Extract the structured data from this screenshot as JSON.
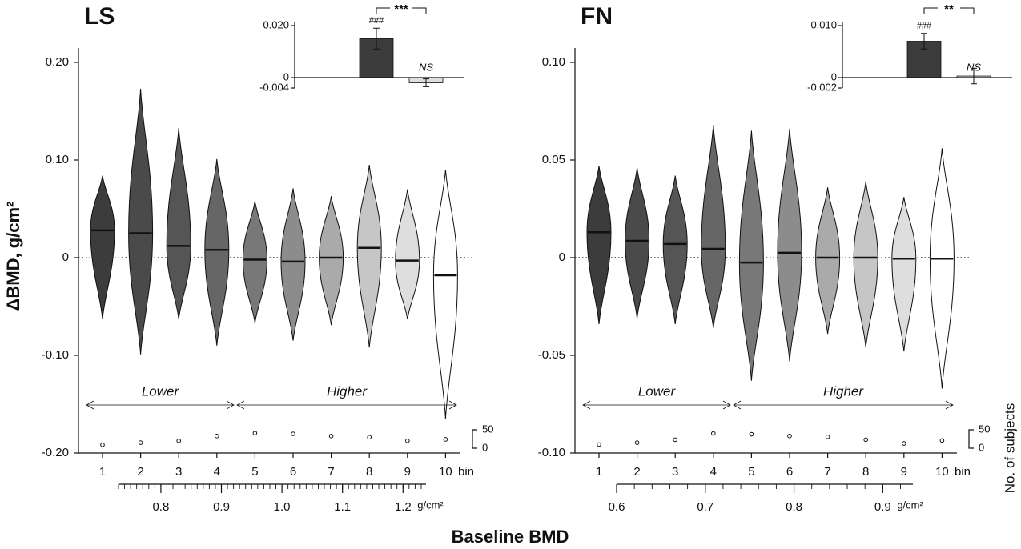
{
  "y_label": "ΔBMD, g/cm²",
  "x_label": "Baseline BMD",
  "subjects_label": "No. of subjects",
  "chart_data": [
    {
      "type": "violin",
      "title": "LS",
      "categories": [
        "1",
        "2",
        "3",
        "4",
        "5",
        "6",
        "7",
        "8",
        "9",
        "10"
      ],
      "x_unit": "bin",
      "ylim": [
        -0.2,
        0.2
      ],
      "yticks": [
        {
          "value": -0.2,
          "label": "-0.20"
        },
        {
          "value": -0.1,
          "label": "-0.10"
        },
        0,
        {
          "value": 0.1,
          "label": "0.10"
        },
        {
          "value": 0.2,
          "label": "0.20"
        }
      ],
      "bins": {
        "max": [
          0.084,
          0.173,
          0.133,
          0.101,
          0.058,
          0.071,
          0.063,
          0.095,
          0.07,
          0.09
        ],
        "min": [
          -0.063,
          -0.099,
          -0.063,
          -0.09,
          -0.067,
          -0.085,
          -0.069,
          -0.092,
          -0.063,
          -0.165
        ],
        "median": [
          0.028,
          0.025,
          0.012,
          0.008,
          -0.002,
          -0.004,
          0,
          0.01,
          -0.003,
          -0.018
        ],
        "colors": [
          "#3c3c3c",
          "#4a4a4a",
          "#555555",
          "#666666",
          "#787878",
          "#8c8c8c",
          "#aaaaaa",
          "#c6c6c6",
          "#dedede",
          "#ffffff"
        ],
        "subjects": [
          9,
          15,
          20,
          33,
          41,
          39,
          33,
          30,
          20,
          24
        ]
      },
      "subjects_lim": [
        0,
        50
      ],
      "subjects_ticks": [
        0,
        50
      ],
      "annotations": {
        "lower": "Lower",
        "higher": "Higher"
      },
      "bmd_axis": {
        "xlim": [
          0.73,
          1.238
        ],
        "xticks": [
          0.8,
          0.9,
          {
            "value": 1.0,
            "label": "1.0"
          },
          1.1,
          1.2
        ],
        "minor_step": 0.01,
        "unit": "g/cm²"
      },
      "inset": {
        "ylim": [
          -0.004,
          0.02
        ],
        "yticks": [
          -0.004,
          0,
          {
            "value": 0.02,
            "label": "0.020"
          }
        ],
        "values": [
          0.015,
          -0.002
        ],
        "errors": [
          0.004,
          0.0015
        ],
        "colors": [
          "#3c3c3c",
          "#dedede"
        ],
        "bar_labels": [
          "###",
          "NS"
        ],
        "significance": "***"
      }
    },
    {
      "type": "violin",
      "title": "FN",
      "categories": [
        "1",
        "2",
        "3",
        "4",
        "5",
        "6",
        "7",
        "8",
        "9",
        "10"
      ],
      "x_unit": "bin",
      "ylim": [
        -0.1,
        0.1
      ],
      "yticks": [
        {
          "value": -0.1,
          "label": "-0.10"
        },
        {
          "value": -0.05,
          "label": "-0.05"
        },
        0,
        {
          "value": 0.05,
          "label": "0.05"
        },
        {
          "value": 0.1,
          "label": "0.10"
        }
      ],
      "bins": {
        "max": [
          0.047,
          0.046,
          0.042,
          0.068,
          0.065,
          0.066,
          0.036,
          0.039,
          0.031,
          0.056
        ],
        "min": [
          -0.034,
          -0.031,
          -0.034,
          -0.036,
          -0.063,
          -0.053,
          -0.039,
          -0.046,
          -0.048,
          -0.067
        ],
        "median": [
          0.013,
          0.0086,
          0.007,
          0.0045,
          -0.0025,
          0.0025,
          0,
          0,
          -0.0005,
          -0.0005
        ],
        "colors": [
          "#3c3c3c",
          "#4a4a4a",
          "#555555",
          "#666666",
          "#787878",
          "#8c8c8c",
          "#aaaaaa",
          "#c6c6c6",
          "#dedede",
          "#ffffff"
        ],
        "subjects": [
          10,
          15,
          23,
          40,
          38,
          33,
          31,
          23,
          13,
          21
        ]
      },
      "subjects_lim": [
        0,
        50
      ],
      "subjects_ticks": [
        0,
        50
      ],
      "annotations": {
        "lower": "Lower",
        "higher": "Higher"
      },
      "bmd_axis": {
        "xlim": [
          0.6,
          0.934
        ],
        "xticks": [
          0.6,
          0.7,
          0.8,
          0.9
        ],
        "minor_step": 0.02,
        "unit": "g/cm²"
      },
      "inset": {
        "ylim": [
          -0.002,
          0.01
        ],
        "yticks": [
          -0.002,
          0,
          {
            "value": 0.01,
            "label": "0.010"
          }
        ],
        "values": [
          0.007,
          0.0003
        ],
        "errors": [
          0.0015,
          0.0015
        ],
        "colors": [
          "#3c3c3c",
          "#dedede"
        ],
        "bar_labels": [
          "###",
          "NS"
        ],
        "significance": "**"
      }
    }
  ]
}
